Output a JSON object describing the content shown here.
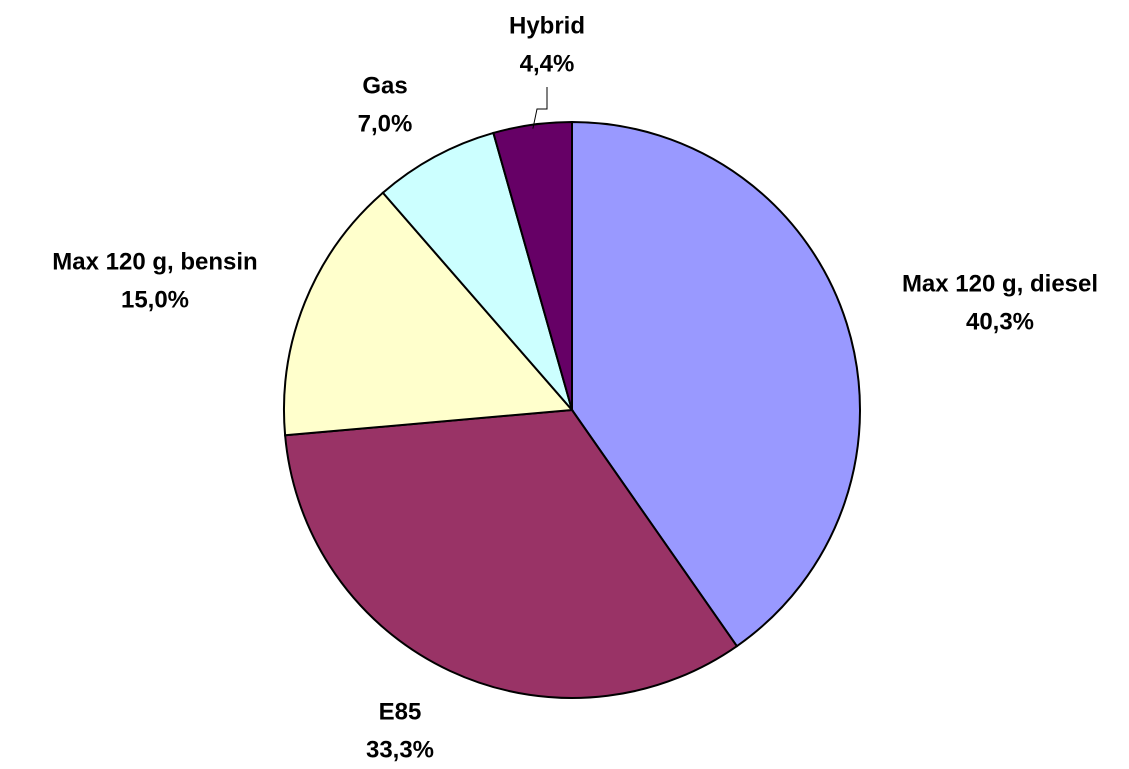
{
  "chart_data": {
    "type": "pie",
    "categories": [
      "Max 120 g, diesel",
      "E85",
      "Max 120 g, bensin",
      "Gas",
      "Hybrid"
    ],
    "values": [
      40.3,
      33.3,
      15.0,
      7.0,
      4.4
    ],
    "value_labels": [
      "40,3%",
      "33,3%",
      "15,0%",
      "7,0%",
      "4,4%"
    ],
    "colors": [
      "#9999ff",
      "#993366",
      "#ffffcc",
      "#ccffff",
      "#660066"
    ]
  }
}
